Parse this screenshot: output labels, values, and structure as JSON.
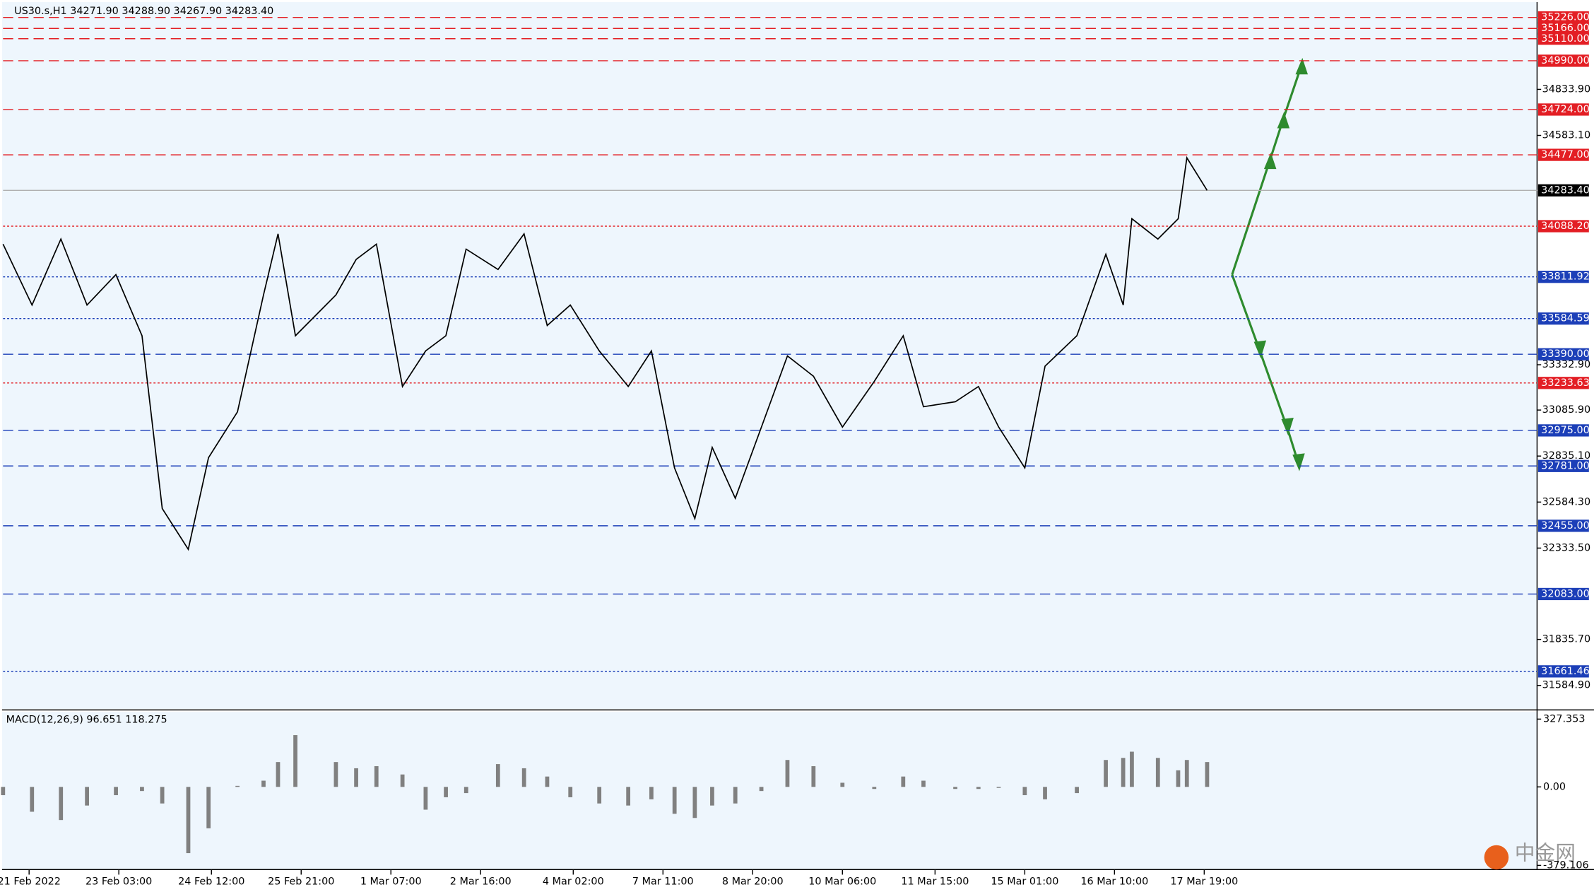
{
  "chart_data": {
    "type": "line",
    "title": "US30.s,H1  34271.90 34288.90 34267.90 34283.40",
    "x": [
      0,
      10,
      20,
      29,
      39,
      48,
      55,
      64,
      71,
      81,
      90,
      95,
      101,
      115,
      122,
      129,
      138,
      146,
      153,
      160,
      171,
      180,
      188,
      196,
      206,
      216,
      224,
      232,
      239,
      245,
      253,
      262,
      271,
      280,
      290,
      301,
      311,
      318,
      329,
      337,
      344,
      353,
      360,
      371,
      381,
      387,
      390,
      399,
      406,
      409,
      416
    ],
    "values": [
      33990,
      33658,
      34018,
      33658,
      33824,
      33491,
      32549,
      32327,
      32826,
      33076,
      33713,
      34046,
      33491,
      33713,
      33907,
      33990,
      33214,
      33408,
      33491,
      33963,
      33852,
      34046,
      33547,
      33658,
      33408,
      33214,
      33408,
      32771,
      32494,
      32882,
      32605,
      32993,
      33381,
      33270,
      32993,
      33242,
      33491,
      33104,
      33131,
      33214,
      32993,
      32771,
      33325,
      33491,
      33935,
      33658,
      34129,
      34018,
      34129,
      34461,
      34283.4
    ],
    "color": "#000000",
    "xlim": [
      0,
      530
    ],
    "xticks": [
      {
        "value": 9,
        "label": "21 Feb 2022"
      },
      {
        "value": 40,
        "label": "23 Feb 03:00"
      },
      {
        "value": 72,
        "label": "24 Feb 12:00"
      },
      {
        "value": 103,
        "label": "25 Feb 21:00"
      },
      {
        "value": 134,
        "label": "1 Mar 07:00"
      },
      {
        "value": 165,
        "label": "2 Mar 16:00"
      },
      {
        "value": 197,
        "label": "4 Mar 02:00"
      },
      {
        "value": 228,
        "label": "7 Mar 11:00"
      },
      {
        "value": 259,
        "label": "8 Mar 20:00"
      },
      {
        "value": 290,
        "label": "10 Mar 06:00"
      },
      {
        "value": 322,
        "label": "11 Mar 15:00"
      },
      {
        "value": 353,
        "label": "15 Mar 01:00"
      },
      {
        "value": 384,
        "label": "16 Mar 10:00"
      },
      {
        "value": 415,
        "label": "17 Mar 19:00"
      }
    ],
    "ylim": [
      31457,
      35304
    ],
    "yticks": [
      {
        "value": 34833.9,
        "label": "34833.90"
      },
      {
        "value": 34583.1,
        "label": "34583.10"
      },
      {
        "value": 33332.9,
        "label": "33332.90"
      },
      {
        "value": 33085.9,
        "label": "33085.90"
      },
      {
        "value": 32835.1,
        "label": "32835.10"
      },
      {
        "value": 32584.3,
        "label": "32584.30"
      },
      {
        "value": 32333.5,
        "label": "32333.50"
      },
      {
        "value": 31835.7,
        "label": "31835.70"
      },
      {
        "value": 31584.9,
        "label": "31584.90"
      }
    ],
    "levels": [
      {
        "value": 35226,
        "label": "35226.00",
        "color": "#e31e24",
        "style": "dashed"
      },
      {
        "value": 35166,
        "label": "35166.00",
        "color": "#e31e24",
        "style": "dashed"
      },
      {
        "value": 35110,
        "label": "35110.00",
        "color": "#e31e24",
        "style": "dashed"
      },
      {
        "value": 34990,
        "label": "34990.00",
        "color": "#e31e24",
        "style": "dashed"
      },
      {
        "value": 34724,
        "label": "34724.00",
        "color": "#e31e24",
        "style": "dashed"
      },
      {
        "value": 34477,
        "label": "34477.00",
        "color": "#e31e24",
        "style": "dashed"
      },
      {
        "value": 34283.4,
        "label": "34283.40",
        "color": "#000000",
        "style": "solid"
      },
      {
        "value": 34088.2,
        "label": "34088.20",
        "color": "#e31e24",
        "style": "dotted"
      },
      33811.92,
      33584.59,
      {
        "value": 33390,
        "label": "33390.00",
        "color": "#1c3fb8",
        "style": "dashed"
      },
      33233.63,
      {
        "value": 32975,
        "label": "32975.00",
        "color": "#1c3fb8",
        "style": "dashed"
      },
      {
        "value": 32781,
        "label": "32781.00",
        "color": "#1c3fb8",
        "style": "dashed"
      },
      {
        "value": 32455,
        "label": "32455.00",
        "color": "#1c3fb8",
        "style": "dashed"
      },
      {
        "value": 32083,
        "label": "32083.00",
        "color": "#1c3fb8",
        "style": "dashed"
      },
      31661.46
    ],
    "level_colors": [
      "#1c3fb8",
      "#1c3fb8",
      "#e31e24",
      "#1c3fb8"
    ],
    "macd": {
      "title": "MACD(12,26,9) 96.651 118.275",
      "color": "#808080",
      "values": [
        -40,
        -120,
        -160,
        -90,
        -40,
        -20,
        -80,
        -320,
        -200,
        5,
        30,
        120,
        250,
        120,
        90,
        100,
        60,
        -110,
        -50,
        -30,
        110,
        90,
        50,
        -50,
        -80,
        -90,
        -60,
        -130,
        -150,
        -90,
        -80,
        -20,
        130,
        100,
        20,
        -10,
        50,
        30,
        -10,
        -10,
        -5,
        -40,
        -60,
        -30,
        130,
        140,
        170,
        140,
        80,
        130,
        120
      ],
      "ylim": [
        -409,
        362
      ],
      "yticks": [
        327.353,
        {
          "value": 0,
          "label": "0.00"
        },
        -379.106
      ]
    },
    "watermark": "中金网"
  }
}
